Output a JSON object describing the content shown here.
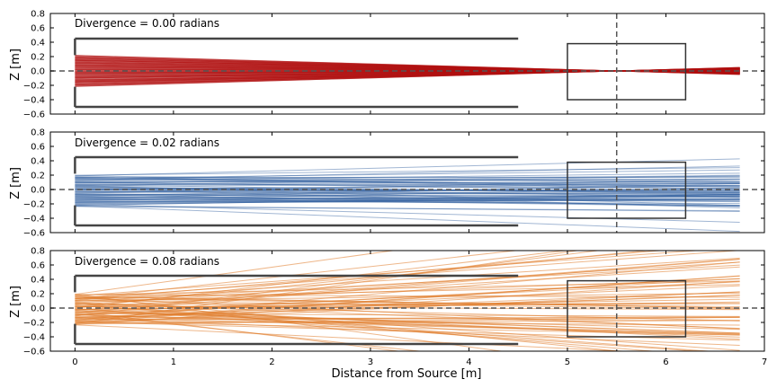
{
  "chart_data": {
    "type": "line",
    "xlabel": "Distance from Source [m]",
    "xlim": [
      -0.25,
      7.0
    ],
    "x_ticks": [
      0,
      1,
      2,
      3,
      4,
      5,
      6,
      7
    ],
    "x_tick_labels": [
      "0",
      "1",
      "2",
      "3",
      "4",
      "5",
      "6",
      "7"
    ],
    "ylabel": "Z [m]",
    "ylim": [
      -0.6,
      0.8
    ],
    "y_ticks": [
      -0.6,
      -0.4,
      -0.2,
      0.0,
      0.2,
      0.4,
      0.6,
      0.8
    ],
    "y_tick_labels": [
      "−0.6",
      "−0.4",
      "−0.2",
      "0.0",
      "0.2",
      "0.4",
      "0.6",
      "0.8"
    ],
    "grid": false,
    "source_start_x": 0.0,
    "ray_end_x": 6.75,
    "ray_count": 70,
    "panels": [
      {
        "annotation": "Divergence = 0.00 radians",
        "divergence_rad": 0.0,
        "ray_color": "#b01111",
        "ray_alpha": 0.6,
        "source_spread_z": [
          -0.22,
          0.22
        ],
        "focus_x": 5.5
      },
      {
        "annotation": "Divergence = 0.02 radians",
        "divergence_rad": 0.02,
        "ray_color": "#2f5d9e",
        "ray_alpha": 0.45,
        "source_spread_z": [
          -0.24,
          0.2
        ]
      },
      {
        "annotation": "Divergence = 0.08 radians",
        "divergence_rad": 0.08,
        "ray_color": "#e07b2a",
        "ray_alpha": 0.55,
        "source_spread_z": [
          -0.24,
          0.2
        ]
      }
    ],
    "wall_bracket": {
      "x_start": 0.0,
      "x_end": 4.5,
      "z_top": 0.45,
      "z_bottom": -0.5,
      "opening_z": [
        -0.22,
        0.22
      ],
      "color": "#444444"
    },
    "detector_box": {
      "x": [
        5.0,
        6.2
      ],
      "z": [
        -0.4,
        0.38
      ],
      "color": "#333333"
    },
    "focal_plane_x": 5.5,
    "axis_line_z": 0.0,
    "guide_line_color": "#555555"
  }
}
